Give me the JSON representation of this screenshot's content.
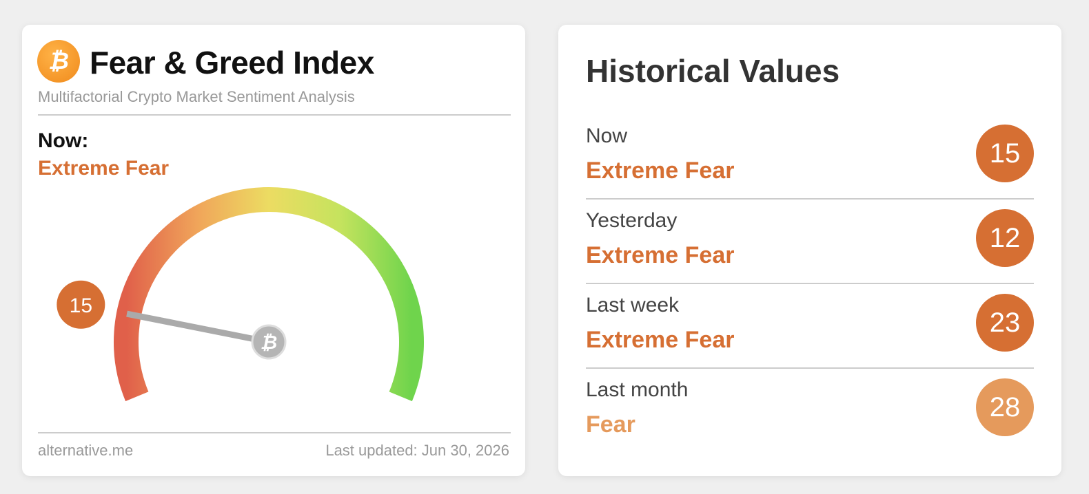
{
  "left_card": {
    "title": "Fear & Greed Index",
    "subtitle": "Multifactorial Crypto Market Sentiment Analysis",
    "now_label": "Now:",
    "now_classification": "Extreme Fear",
    "value": 15,
    "source": "alternative.me",
    "updated": "Last updated: Jun 30, 2026"
  },
  "right_card": {
    "title": "Historical Values",
    "rows": [
      {
        "label": "Now",
        "classification": "Extreme Fear",
        "value": 15,
        "color": "#d66f33"
      },
      {
        "label": "Yesterday",
        "classification": "Extreme Fear",
        "value": 12,
        "color": "#d66f33"
      },
      {
        "label": "Last week",
        "classification": "Extreme Fear",
        "value": 23,
        "color": "#d66f33"
      },
      {
        "label": "Last month",
        "classification": "Fear",
        "value": 28,
        "color": "#e59a5c"
      }
    ]
  }
}
